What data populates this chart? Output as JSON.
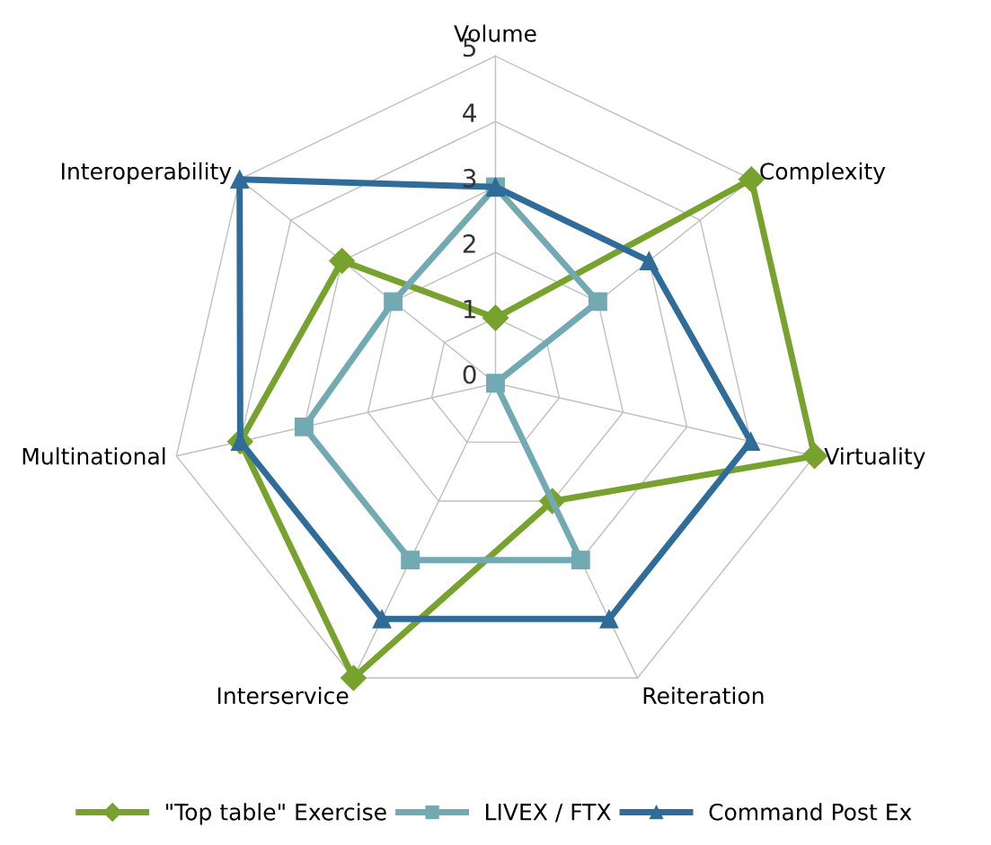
{
  "chart_data": {
    "type": "radar",
    "categories": [
      "Volume",
      "Complexity",
      "Virtuality",
      "Reiteration",
      "Interservice",
      "Multinational",
      "Interoperability"
    ],
    "series": [
      {
        "name": "\"Top table\" Exercise",
        "color": "#77a22d",
        "marker": "diamond",
        "values": [
          1,
          5,
          5,
          2,
          5,
          4,
          3
        ]
      },
      {
        "name": "LIVEX / FTX",
        "color": "#72aab3",
        "marker": "square",
        "values": [
          3,
          2,
          0,
          3,
          3,
          3,
          2
        ]
      },
      {
        "name": "Command Post Ex",
        "color": "#2f6c99",
        "marker": "triangle",
        "values": [
          3,
          3,
          4,
          4,
          4,
          4,
          5
        ]
      }
    ],
    "ylim": [
      0,
      5
    ],
    "yticks": [
      0,
      1,
      2,
      3,
      4,
      5
    ],
    "grid": true,
    "legend": "bottom"
  }
}
